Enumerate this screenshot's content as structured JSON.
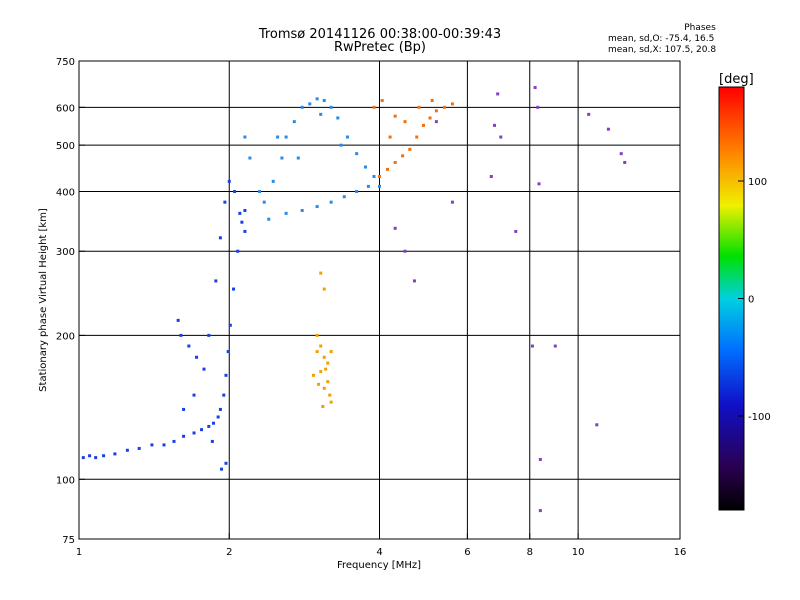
{
  "chart_data": {
    "type": "scatter",
    "title": "Tromsø 20141126 00:38:00-00:39:43",
    "subtitle": "RwPretec (Bp)",
    "xlabel": "Frequency [MHz]",
    "ylabel": "Stationary phase Virtual Height [km]",
    "x_scale": "log",
    "y_scale": "log",
    "xlim": [
      1,
      16
    ],
    "ylim": [
      75,
      750
    ],
    "x_ticks": [
      1,
      2,
      4,
      6,
      8,
      10,
      16
    ],
    "y_ticks": [
      75,
      100,
      200,
      300,
      400,
      500,
      600,
      750
    ],
    "grid_x": [
      2,
      4,
      6,
      8,
      10
    ],
    "grid_y": [
      100,
      200,
      300,
      400,
      500,
      600
    ],
    "legend": {
      "title": "Phases",
      "entries": [
        "mean, sd,O: -75.4, 16.5",
        "mean, sd,X: 107.5, 20.8"
      ]
    },
    "colorbar": {
      "unit": "[deg]",
      "range": [
        -180,
        180
      ],
      "ticks": [
        100,
        0,
        -100
      ],
      "colors": [
        "#000000",
        "#2a0050",
        "#1010c8",
        "#0070ff",
        "#00d0e0",
        "#00e000",
        "#f0f000",
        "#ff8000",
        "#ff0000"
      ]
    },
    "series": [
      {
        "trace": "O-mode low layer (blue)",
        "color": "#1a3fe6",
        "points": [
          [
            1.02,
            111
          ],
          [
            1.05,
            112
          ],
          [
            1.08,
            111
          ],
          [
            1.12,
            112
          ],
          [
            1.18,
            113
          ],
          [
            1.25,
            115
          ],
          [
            1.32,
            116
          ],
          [
            1.4,
            118
          ],
          [
            1.48,
            118
          ],
          [
            1.55,
            120
          ],
          [
            1.62,
            123
          ],
          [
            1.7,
            125
          ],
          [
            1.76,
            127
          ],
          [
            1.82,
            129
          ],
          [
            1.86,
            131
          ],
          [
            1.9,
            135
          ],
          [
            1.92,
            140
          ],
          [
            1.95,
            150
          ],
          [
            1.97,
            165
          ],
          [
            1.99,
            185
          ],
          [
            2.01,
            210
          ],
          [
            2.04,
            250
          ],
          [
            2.08,
            300
          ],
          [
            2.12,
            345
          ],
          [
            2.15,
            365
          ],
          [
            1.78,
            170
          ],
          [
            1.82,
            200
          ],
          [
            1.88,
            260
          ],
          [
            1.92,
            320
          ],
          [
            1.96,
            380
          ],
          [
            2.0,
            420
          ],
          [
            2.05,
            400
          ],
          [
            2.1,
            360
          ],
          [
            2.15,
            330
          ],
          [
            1.6,
            200
          ],
          [
            1.66,
            190
          ],
          [
            1.72,
            180
          ],
          [
            1.58,
            215
          ],
          [
            1.62,
            140
          ],
          [
            1.7,
            150
          ],
          [
            1.85,
            120
          ],
          [
            1.93,
            105
          ],
          [
            1.97,
            108
          ]
        ]
      },
      {
        "trace": "F-layer trace (cyan/blue)",
        "color": "#2a8ae8",
        "points": [
          [
            2.35,
            380
          ],
          [
            2.45,
            420
          ],
          [
            2.55,
            470
          ],
          [
            2.6,
            520
          ],
          [
            2.7,
            560
          ],
          [
            2.8,
            600
          ],
          [
            2.9,
            610
          ],
          [
            3.0,
            625
          ],
          [
            3.1,
            620
          ],
          [
            3.2,
            600
          ],
          [
            3.3,
            570
          ],
          [
            3.45,
            520
          ],
          [
            3.6,
            480
          ],
          [
            3.75,
            450
          ],
          [
            3.9,
            430
          ],
          [
            4.0,
            410
          ],
          [
            2.4,
            350
          ],
          [
            2.6,
            360
          ],
          [
            2.8,
            365
          ],
          [
            3.0,
            372
          ],
          [
            3.2,
            380
          ],
          [
            3.4,
            390
          ],
          [
            3.6,
            400
          ],
          [
            3.8,
            410
          ],
          [
            2.3,
            400
          ],
          [
            2.5,
            520
          ],
          [
            2.75,
            470
          ],
          [
            3.05,
            580
          ],
          [
            3.35,
            500
          ],
          [
            2.15,
            520
          ],
          [
            2.2,
            470
          ]
        ]
      },
      {
        "trace": "Echoes near 3 MHz (orange)",
        "color": "#f0a000",
        "points": [
          [
            3.0,
            200
          ],
          [
            3.05,
            190
          ],
          [
            3.1,
            180
          ],
          [
            3.12,
            170
          ],
          [
            3.15,
            160
          ],
          [
            3.18,
            150
          ],
          [
            3.2,
            145
          ],
          [
            3.15,
            175
          ],
          [
            3.05,
            168
          ],
          [
            3.1,
            155
          ],
          [
            3.0,
            185
          ],
          [
            3.08,
            142
          ],
          [
            3.02,
            158
          ],
          [
            2.95,
            165
          ],
          [
            3.2,
            185
          ],
          [
            3.05,
            270
          ],
          [
            3.1,
            250
          ]
        ]
      },
      {
        "trace": "X-mode trace (orange/red)",
        "color": "#f07010",
        "points": [
          [
            4.0,
            430
          ],
          [
            4.15,
            445
          ],
          [
            4.3,
            460
          ],
          [
            4.45,
            475
          ],
          [
            4.6,
            490
          ],
          [
            4.75,
            520
          ],
          [
            4.9,
            550
          ],
          [
            5.05,
            570
          ],
          [
            5.2,
            590
          ],
          [
            5.4,
            600
          ],
          [
            5.6,
            610
          ],
          [
            4.2,
            520
          ],
          [
            4.5,
            560
          ],
          [
            4.8,
            600
          ],
          [
            5.1,
            620
          ],
          [
            3.9,
            600
          ],
          [
            4.05,
            620
          ],
          [
            4.3,
            575
          ]
        ]
      },
      {
        "trace": "Scattered echoes",
        "color": "#8040c0",
        "points": [
          [
            6.9,
            640
          ],
          [
            7.0,
            520
          ],
          [
            8.2,
            660
          ],
          [
            8.3,
            600
          ],
          [
            10.5,
            580
          ],
          [
            11.5,
            540
          ],
          [
            12.2,
            480
          ],
          [
            12.4,
            460
          ],
          [
            6.7,
            430
          ],
          [
            8.35,
            415
          ],
          [
            6.8,
            550
          ],
          [
            4.5,
            300
          ],
          [
            4.7,
            260
          ],
          [
            5.6,
            380
          ],
          [
            8.1,
            190
          ],
          [
            9.0,
            190
          ],
          [
            8.4,
            110
          ],
          [
            8.4,
            86
          ],
          [
            10.9,
            130
          ],
          [
            7.5,
            330
          ],
          [
            4.3,
            335
          ],
          [
            5.2,
            560
          ]
        ]
      }
    ]
  }
}
